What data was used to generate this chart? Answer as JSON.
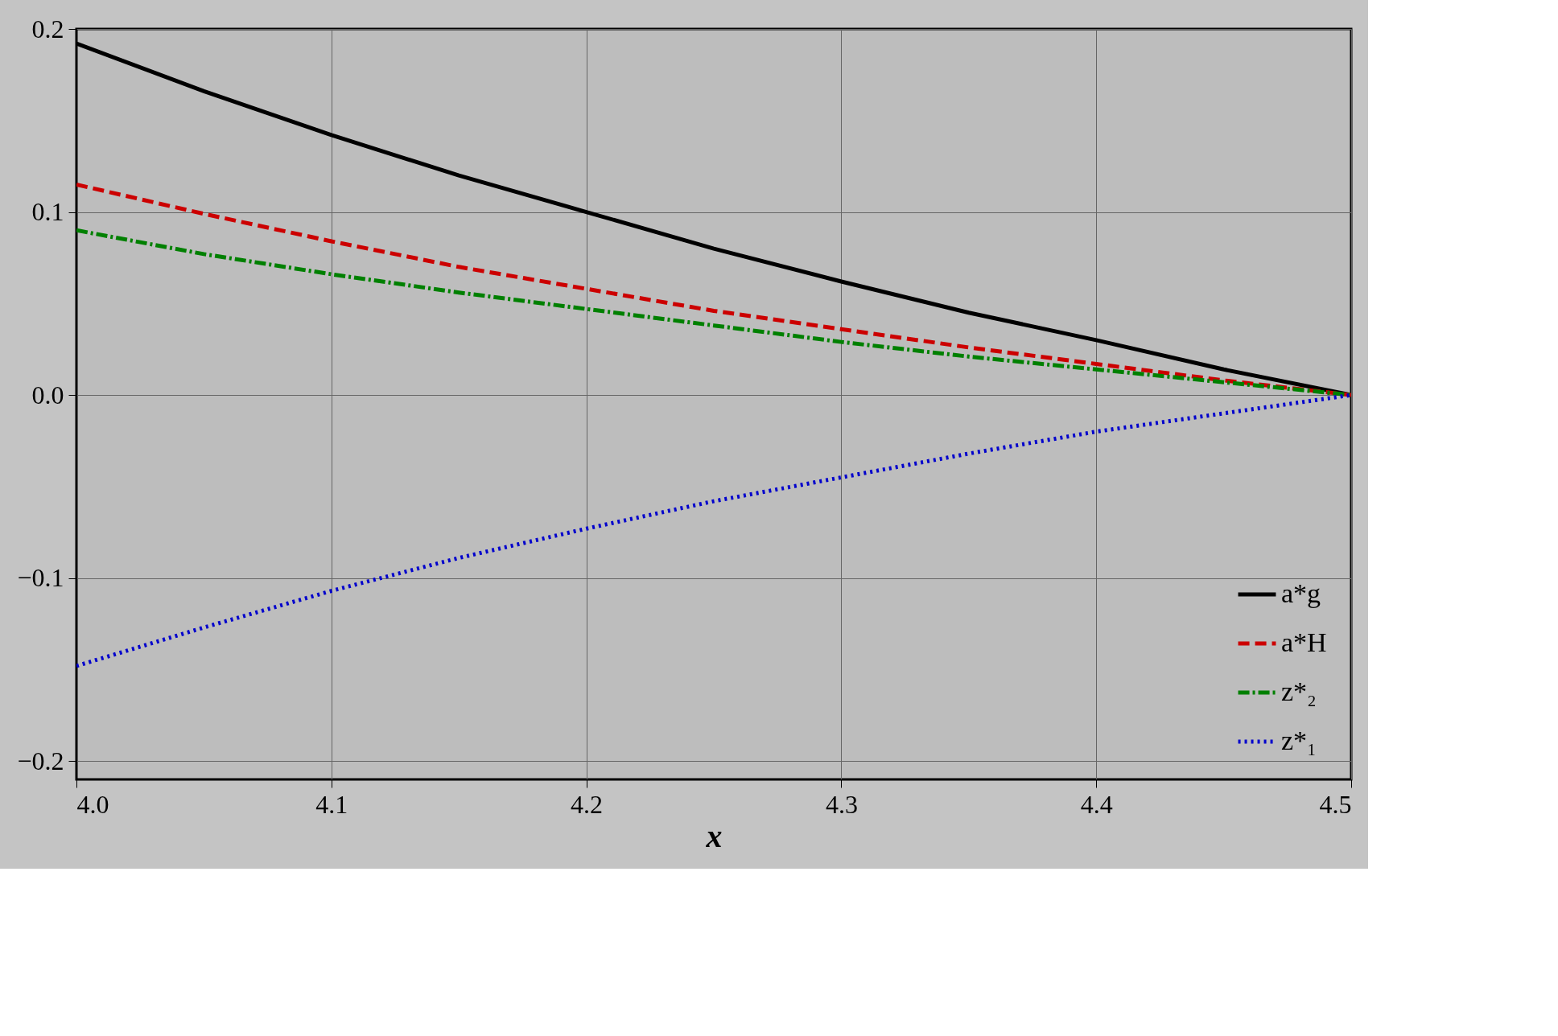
{
  "chart_data": {
    "type": "line",
    "xlabel": "x",
    "x": [
      4.0,
      4.05,
      4.1,
      4.15,
      4.2,
      4.25,
      4.3,
      4.35,
      4.4,
      4.45,
      4.5
    ],
    "series": [
      {
        "name": "a*g",
        "color": "#000000",
        "line_style": "solid",
        "values": [
          0.192,
          0.166,
          0.142,
          0.12,
          0.1,
          0.08,
          0.062,
          0.045,
          0.03,
          0.014,
          0.0
        ]
      },
      {
        "name": "a*H",
        "color": "#cc0000",
        "line_style": "dashed",
        "values": [
          0.115,
          0.099,
          0.084,
          0.07,
          0.058,
          0.046,
          0.036,
          0.026,
          0.017,
          0.008,
          0.0
        ]
      },
      {
        "name": "z*₂",
        "color": "#008000",
        "line_style": "dashdot",
        "values": [
          0.09,
          0.077,
          0.066,
          0.056,
          0.047,
          0.038,
          0.029,
          0.021,
          0.014,
          0.007,
          0.0
        ]
      },
      {
        "name": "z*₁",
        "color": "#0000cc",
        "line_style": "dotted",
        "values": [
          -0.148,
          -0.127,
          -0.107,
          -0.089,
          -0.073,
          -0.058,
          -0.045,
          -0.032,
          -0.02,
          -0.01,
          0.0
        ]
      }
    ],
    "xlim": [
      4.0,
      4.5
    ],
    "ylim": [
      -0.21,
      0.2
    ],
    "xticks": [
      {
        "value": 4.0,
        "label": "4.0"
      },
      {
        "value": 4.1,
        "label": "4.1"
      },
      {
        "value": 4.2,
        "label": "4.2"
      },
      {
        "value": 4.3,
        "label": "4.3"
      },
      {
        "value": 4.4,
        "label": "4.4"
      },
      {
        "value": 4.5,
        "label": "4.5"
      }
    ],
    "yticks": [
      {
        "value": -0.2,
        "label": "−0.2"
      },
      {
        "value": -0.1,
        "label": "−0.1"
      },
      {
        "value": 0.0,
        "label": "0.0"
      },
      {
        "value": 0.1,
        "label": "0.1"
      },
      {
        "value": 0.2,
        "label": "0.2"
      }
    ],
    "grid": true,
    "legend": "bottom right",
    "marker": "none"
  }
}
